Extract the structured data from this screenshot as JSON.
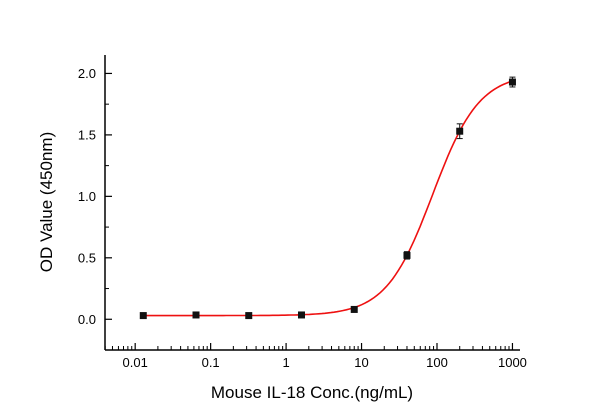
{
  "figure": {
    "background": "#ffffff"
  },
  "chart_data": {
    "type": "scatter",
    "title": "",
    "xlabel": "Mouse IL-18 Conc.(ng/mL)",
    "ylabel": "OD Value (450nm)",
    "x_scale": "log",
    "x_log_range": [
      -2.4,
      3.1
    ],
    "y_range": [
      -0.25,
      2.15
    ],
    "grid": false,
    "legend": "none",
    "x_ticks": [
      {
        "value": 0.01,
        "label": "0.01"
      },
      {
        "value": 0.1,
        "label": "0.1"
      },
      {
        "value": 1,
        "label": "1"
      },
      {
        "value": 10,
        "label": "10"
      },
      {
        "value": 100,
        "label": "100"
      },
      {
        "value": 1000,
        "label": "1000"
      }
    ],
    "y_ticks": [
      {
        "value": 0.0,
        "label": "0.0"
      },
      {
        "value": 0.5,
        "label": "0.5"
      },
      {
        "value": 1.0,
        "label": "1.0"
      },
      {
        "value": 1.5,
        "label": "1.5"
      },
      {
        "value": 2.0,
        "label": "2.0"
      }
    ],
    "y_minor_step": 0.25,
    "points": {
      "x": [
        0.0128,
        0.064,
        0.32,
        1.6,
        8,
        40,
        200,
        1000
      ],
      "y": [
        0.03,
        0.035,
        0.03,
        0.035,
        0.08,
        0.52,
        1.53,
        1.93
      ],
      "y_err": [
        0.02,
        0.02,
        0.02,
        0.02,
        0.02,
        0.03,
        0.06,
        0.04
      ]
    },
    "curve_fit": {
      "type": "4PL",
      "bottom": 0.03,
      "top": 2.0,
      "ec50": 87.6,
      "hill": 1.41
    },
    "colors": {
      "curve": "#ee1111",
      "marker": "#111111",
      "axis": "#000000"
    }
  }
}
